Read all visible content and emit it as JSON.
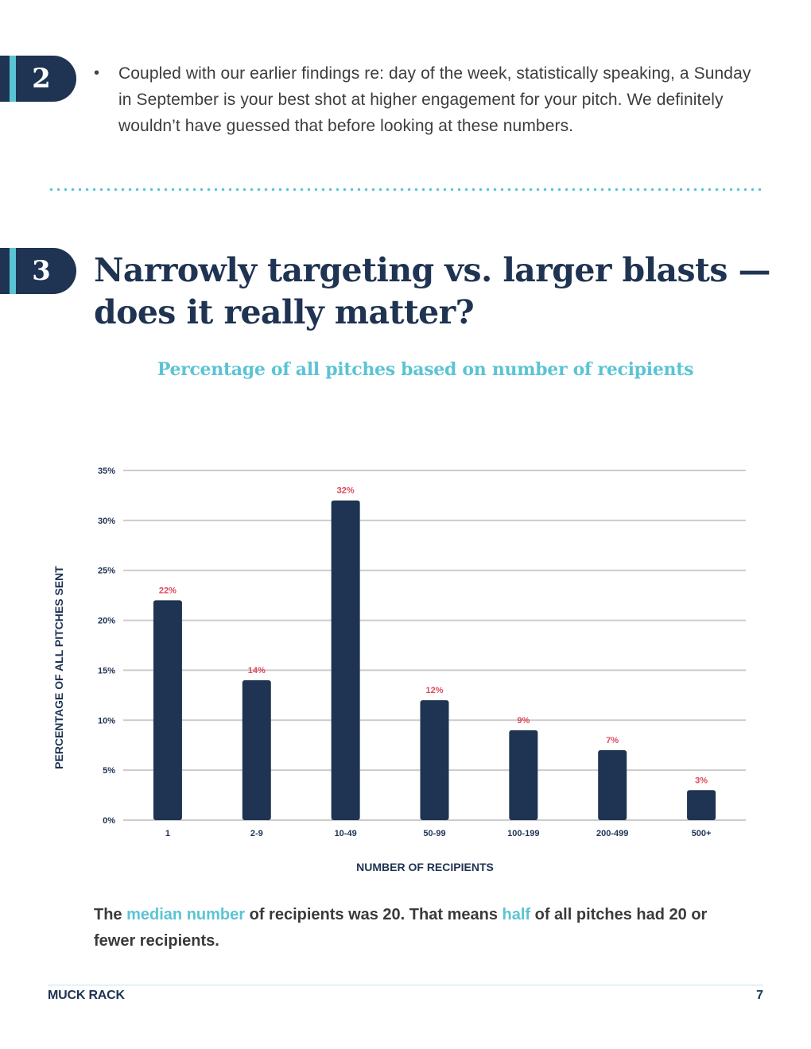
{
  "section2": {
    "number": "2",
    "bullet": "•",
    "text": "Coupled with our earlier findings re: day of the week, statistically speaking, a Sunday in September is your best shot at higher engagement for your pitch. We definitely wouldn’t have guessed that before looking at these numbers."
  },
  "section3": {
    "number": "3",
    "headline_line1": "Narrowly targeting vs. larger blasts —",
    "headline_line2": "does it really matter?"
  },
  "caption": {
    "part1": "The ",
    "hl1": "median number",
    "part2": " of recipients was 20. That means ",
    "hl2": "half",
    "part3": " of all pitches had 20 or fewer recipients."
  },
  "footer": {
    "brand": "MUCK RACK",
    "page": "7"
  },
  "colors": {
    "navy": "#1f3352",
    "teal": "#5bc4d4",
    "label_red": "#e0485a",
    "grid": "#cccccc"
  },
  "chart_data": {
    "type": "bar",
    "title": "Percentage of all pitches based on number of recipients",
    "xlabel": "NUMBER OF RECIPIENTS",
    "ylabel": "PERCENTAGE OF ALL PITCHES SENT",
    "categories": [
      "1",
      "2-9",
      "10-49",
      "50-99",
      "100-199",
      "200-499",
      "500+"
    ],
    "values": [
      22,
      14,
      32,
      12,
      9,
      7,
      3
    ],
    "data_labels": [
      "22%",
      "14%",
      "32%",
      "12%",
      "9%",
      "7%",
      "3%"
    ],
    "yticks": [
      "0%",
      "5%",
      "10%",
      "15%",
      "20%",
      "25%",
      "30%",
      "35%"
    ],
    "ylim": [
      0,
      35
    ],
    "grid": true
  }
}
